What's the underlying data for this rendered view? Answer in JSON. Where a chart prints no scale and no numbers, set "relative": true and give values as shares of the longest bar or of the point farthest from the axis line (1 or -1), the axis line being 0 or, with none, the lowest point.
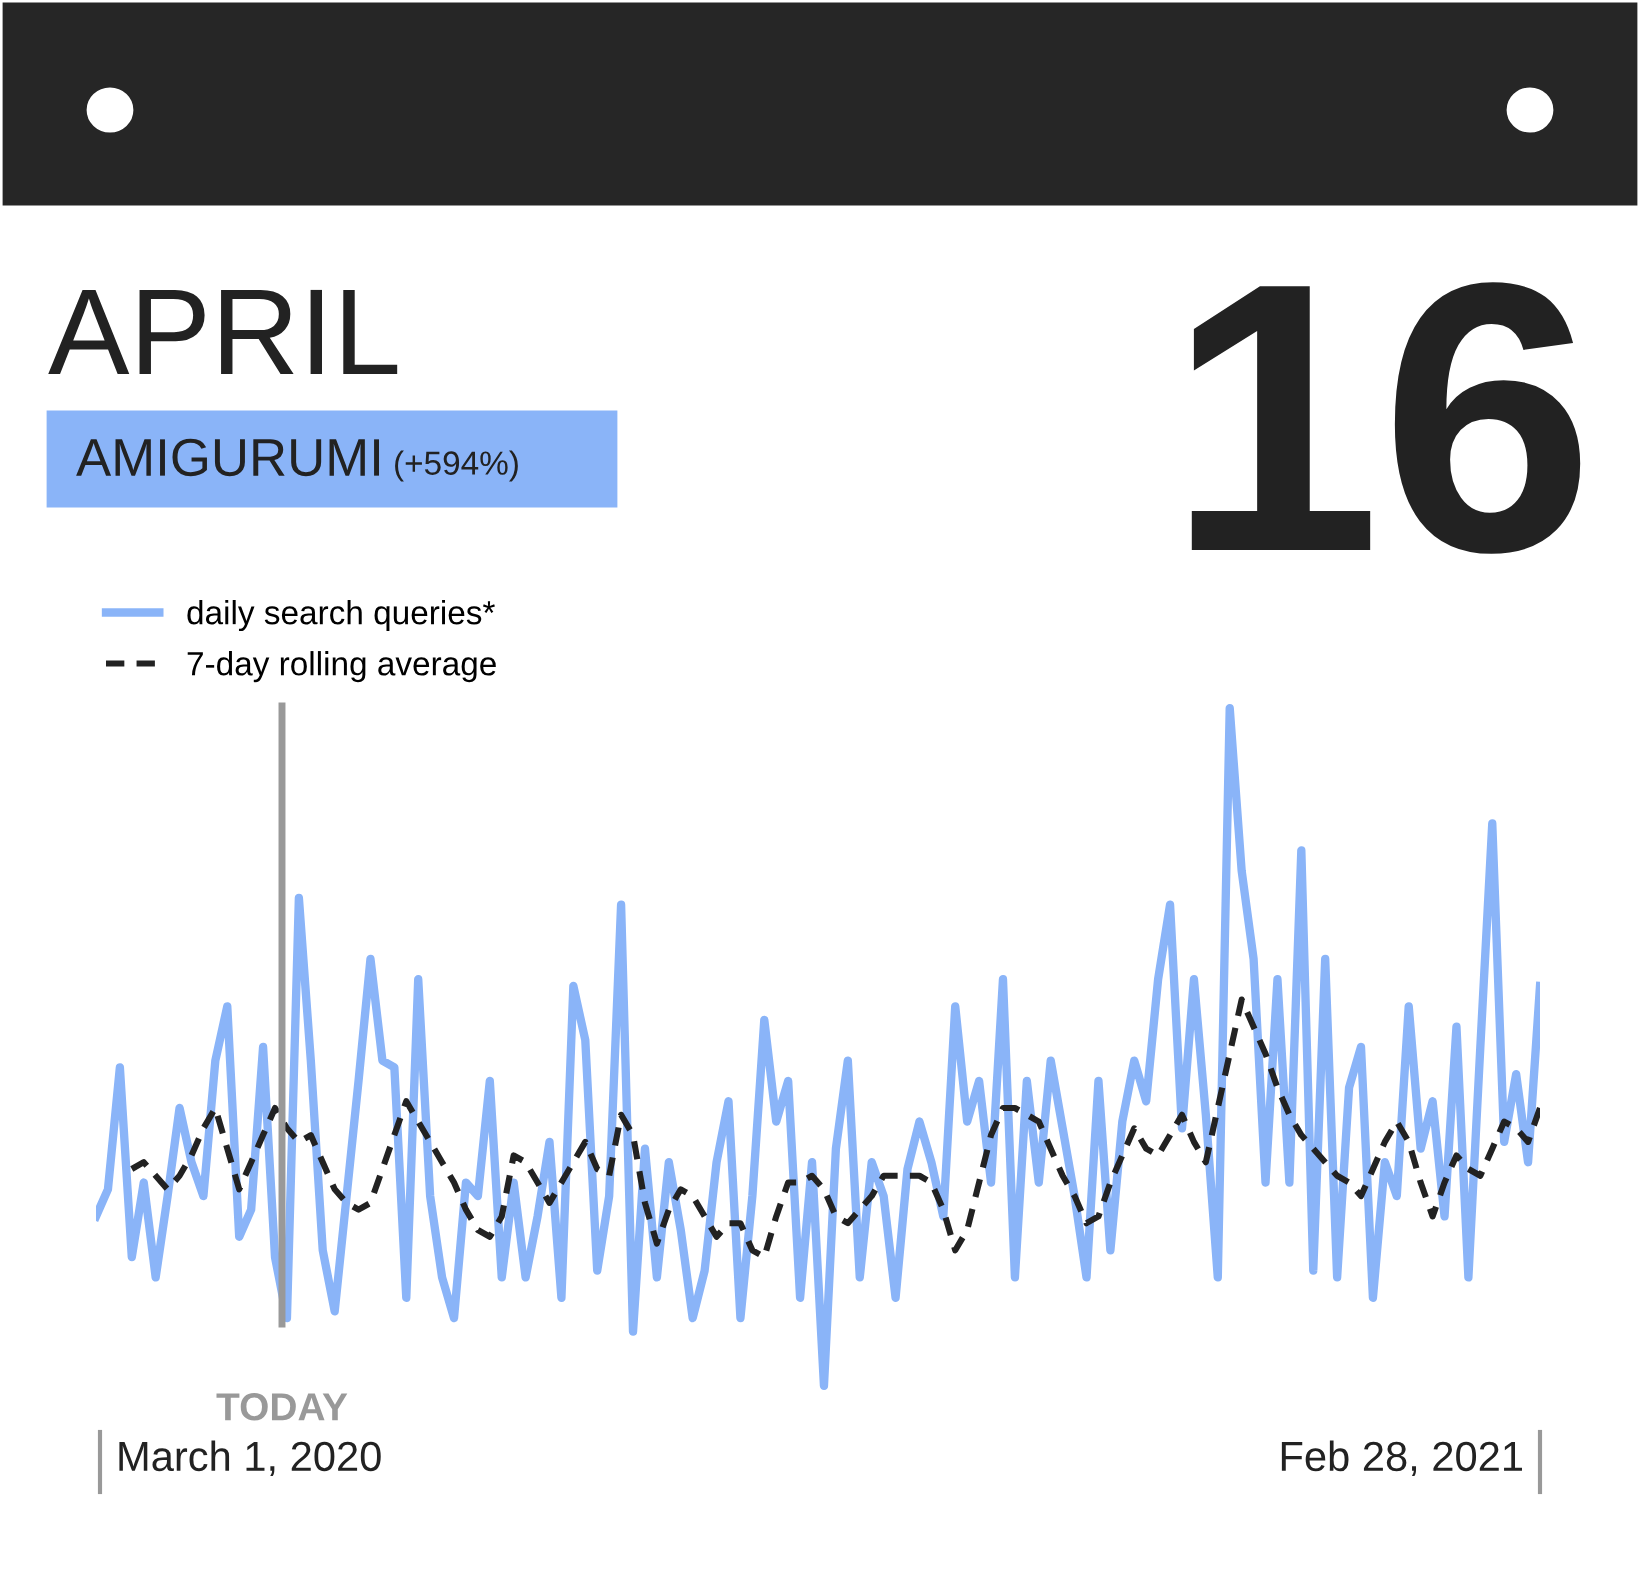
{
  "chart_data": {
    "type": "line",
    "title": "APRIL",
    "subtitle": "AMIGURUMI",
    "annotations": [
      "16",
      "(+594%)",
      "March 1, 2020",
      "Feb 28, 2021",
      "TODAY"
    ],
    "relative": true,
    "legend": "top left",
    "categories": [
      null,
      null,
      null,
      null,
      null,
      null,
      null,
      null,
      null,
      null,
      null,
      null,
      null,
      null,
      null,
      null,
      null,
      null,
      null,
      null,
      null,
      null,
      null,
      null,
      null,
      null,
      null,
      null,
      null,
      null,
      null,
      null,
      null,
      null,
      null,
      null,
      null,
      null,
      null,
      null,
      null,
      null,
      null,
      null,
      null,
      null,
      null,
      null,
      null,
      null,
      null,
      null,
      null,
      null,
      null,
      null,
      null,
      null,
      null,
      null,
      null,
      null,
      null,
      null,
      null,
      null,
      null,
      null,
      null,
      null,
      null,
      null,
      null,
      null,
      null,
      null,
      null,
      null,
      null,
      null,
      null,
      null,
      null,
      null,
      null,
      null,
      null,
      null,
      null,
      null,
      null,
      null,
      null,
      null,
      null,
      null,
      null,
      null,
      null,
      null,
      null,
      null,
      null,
      null,
      null,
      null,
      null,
      null,
      null,
      null,
      null,
      null,
      null,
      null,
      null,
      null,
      null,
      null,
      null,
      null,
      null,
      null
    ],
    "series": [
      {
        "name": "daily search queries*",
        "color": "#8ab4f8",
        "line_style": "solid",
        "values": [
          0.25,
          0.29,
          0.47,
          0.19,
          0.3,
          0.16,
          0.28,
          0.41,
          0.33,
          0.28,
          0.48,
          0.56,
          0.22,
          0.26,
          0.5,
          0.19,
          0.1,
          0.72,
          0.48,
          0.2,
          0.11,
          0.28,
          0.45,
          0.63,
          0.48,
          0.47,
          0.13,
          0.6,
          0.28,
          0.16,
          0.1,
          0.3,
          0.28,
          0.45,
          0.16,
          0.3,
          0.16,
          0.25,
          0.36,
          0.13,
          0.59,
          0.51,
          0.17,
          0.28,
          0.71,
          0.08,
          0.35,
          0.16,
          0.33,
          0.23,
          0.1,
          0.17,
          0.33,
          0.42,
          0.1,
          0.28,
          0.54,
          0.39,
          0.45,
          0.13,
          0.33,
          0,
          0.35,
          0.48,
          0.16,
          0.33,
          0.28,
          0.13,
          0.32,
          0.39,
          0.33,
          0.25,
          0.56,
          0.39,
          0.45,
          0.3,
          0.6,
          0.16,
          0.45,
          0.3,
          0.48,
          0.38,
          0.28,
          0.16,
          0.45,
          0.2,
          0.39,
          0.48,
          0.42,
          0.6,
          0.71,
          0.38,
          0.6,
          0.4,
          0.16,
          1,
          0.76,
          0.63,
          0.3,
          0.6,
          0.3,
          0.79,
          0.17,
          0.63,
          0.16,
          0.44,
          0.5,
          0.13,
          0.33,
          0.28,
          0.56,
          0.35,
          0.42,
          0.25,
          0.53,
          0.16,
          0.5,
          0.83,
          0.36,
          0.46,
          0.33,
          0.59
        ]
      },
      {
        "name": "7-day rolling average",
        "color": "#222222",
        "line_style": "dashed",
        "values": [
          null,
          null,
          null,
          0.32,
          0.33,
          0.31,
          0.29,
          0.31,
          0.34,
          0.38,
          0.41,
          0.35,
          0.29,
          0.33,
          0.37,
          0.41,
          0.38,
          0.36,
          0.37,
          0.33,
          0.29,
          0.27,
          0.26,
          0.27,
          0.32,
          0.37,
          0.42,
          0.39,
          0.36,
          0.33,
          0.3,
          0.26,
          0.23,
          0.22,
          0.25,
          0.34,
          0.33,
          0.3,
          0.27,
          0.3,
          0.33,
          0.36,
          0.32,
          0.31,
          0.4,
          0.37,
          0.27,
          0.21,
          0.26,
          0.29,
          0.28,
          0.25,
          0.22,
          0.24,
          0.24,
          0.2,
          0.19,
          0.25,
          0.3,
          0.3,
          0.31,
          0.29,
          0.25,
          0.24,
          0.26,
          0.28,
          0.31,
          0.31,
          0.31,
          0.31,
          0.3,
          0.26,
          0.2,
          0.23,
          0.3,
          0.37,
          0.41,
          0.41,
          0.4,
          0.39,
          0.35,
          0.31,
          0.28,
          0.24,
          0.25,
          0.3,
          0.34,
          0.38,
          0.35,
          0.34,
          0.37,
          0.4,
          0.36,
          0.33,
          0.41,
          0.49,
          0.57,
          0.53,
          0.49,
          0.44,
          0.4,
          0.37,
          0.35,
          0.33,
          0.31,
          0.3,
          0.28,
          0.32,
          0.36,
          0.39,
          0.36,
          0.3,
          0.25,
          0.3,
          0.34,
          0.32,
          0.31,
          0.35,
          0.39,
          0.38,
          0.36,
          0.41
        ]
      }
    ]
  }
}
